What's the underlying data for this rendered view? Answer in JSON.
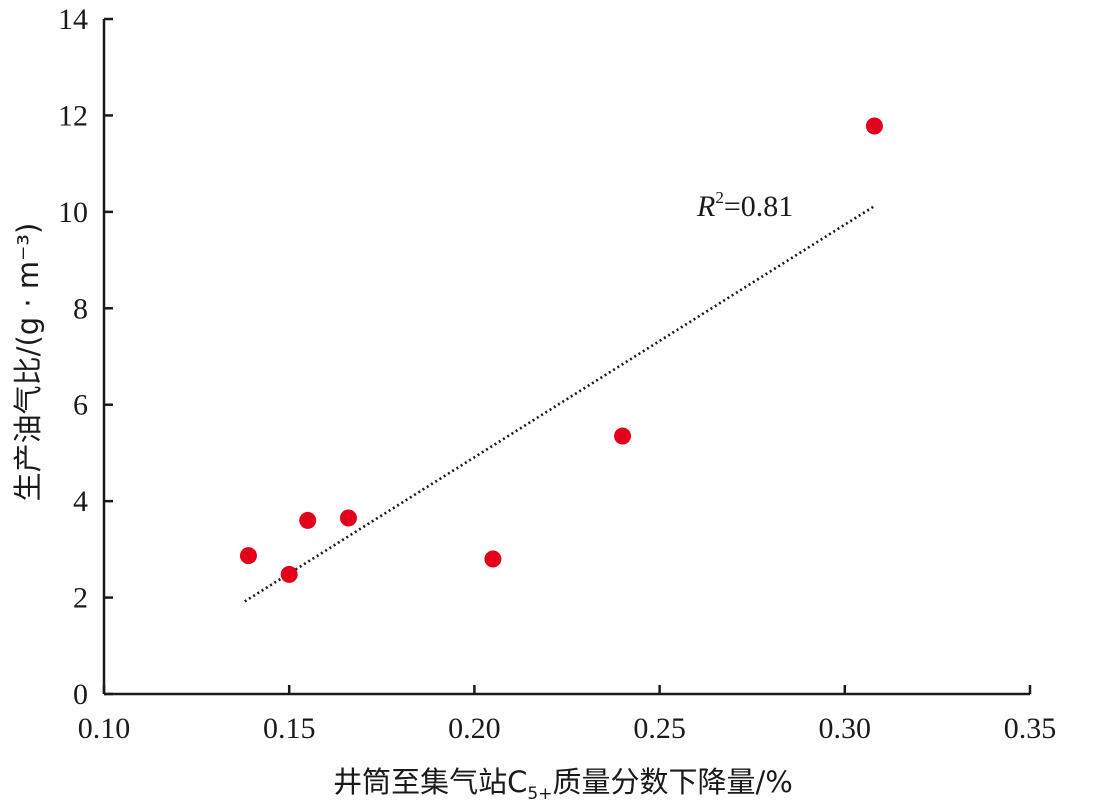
{
  "chart_data": {
    "type": "scatter",
    "xlabel_parts": {
      "before": "井筒至集气站C",
      "subscript": "5+",
      "after": "质量分数下降量/%"
    },
    "ylabel": "生产油气比/(g · m⁻³)",
    "xlim": [
      0.1,
      0.35
    ],
    "ylim": [
      0,
      14
    ],
    "x_ticks": [
      "0.10",
      "0.15",
      "0.20",
      "0.25",
      "0.30",
      "0.35"
    ],
    "y_ticks": [
      "0",
      "2",
      "4",
      "6",
      "8",
      "10",
      "12",
      "14"
    ],
    "points": [
      {
        "x": 0.139,
        "y": 2.87
      },
      {
        "x": 0.15,
        "y": 2.48
      },
      {
        "x": 0.155,
        "y": 3.6
      },
      {
        "x": 0.166,
        "y": 3.65
      },
      {
        "x": 0.205,
        "y": 2.8
      },
      {
        "x": 0.24,
        "y": 5.35
      },
      {
        "x": 0.308,
        "y": 11.78
      }
    ],
    "trendline": {
      "style": "dotted",
      "start": {
        "x": 0.138,
        "y": 1.92
      },
      "end": {
        "x": 0.308,
        "y": 10.12
      }
    },
    "annotation": {
      "symbol": "R",
      "superscript": "2",
      "text": "=0.81"
    },
    "grid": false,
    "legend": "none",
    "colors": {
      "points": "#e3001b",
      "axes": "#1a1a1a",
      "trendline": "#1a1a1a"
    }
  }
}
